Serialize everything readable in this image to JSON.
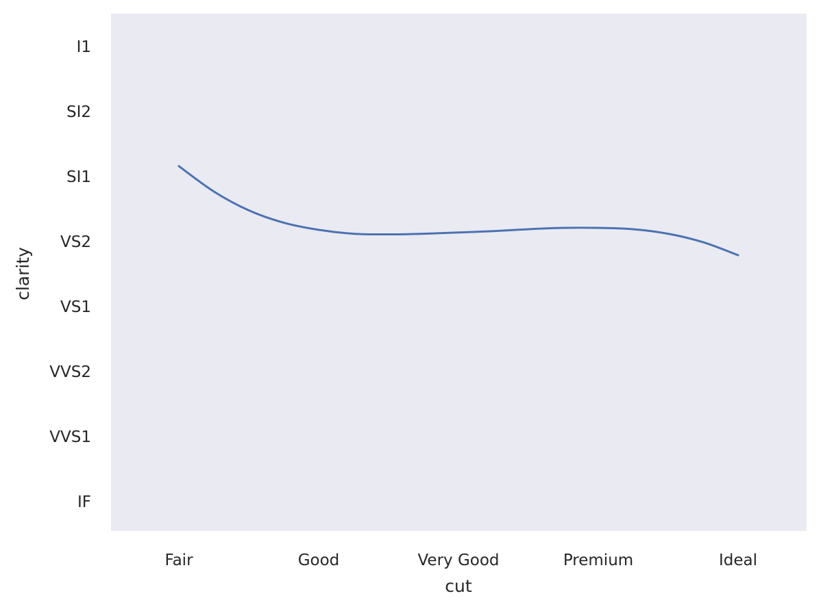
{
  "chart_data": {
    "type": "line",
    "xlabel": "cut",
    "ylabel": "clarity",
    "categories": [
      "Fair",
      "Good",
      "Very Good",
      "Premium",
      "Ideal"
    ],
    "y_categories": [
      "I1",
      "SI2",
      "SI1",
      "VS2",
      "VS1",
      "VVS2",
      "VVS1",
      "IF"
    ],
    "y_axis_inverted": true,
    "grid": false,
    "series": [
      {
        "color": "#4c72b0",
        "points": [
          {
            "x": 0.0,
            "y": 1.84
          },
          {
            "x": 0.25,
            "y": 2.23
          },
          {
            "x": 0.5,
            "y": 2.52
          },
          {
            "x": 0.75,
            "y": 2.71
          },
          {
            "x": 1.0,
            "y": 2.82
          },
          {
            "x": 1.25,
            "y": 2.88
          },
          {
            "x": 1.5,
            "y": 2.89
          },
          {
            "x": 1.75,
            "y": 2.88
          },
          {
            "x": 2.0,
            "y": 2.86
          },
          {
            "x": 2.25,
            "y": 2.84
          },
          {
            "x": 2.5,
            "y": 2.81
          },
          {
            "x": 2.75,
            "y": 2.79
          },
          {
            "x": 3.0,
            "y": 2.79
          },
          {
            "x": 3.25,
            "y": 2.81
          },
          {
            "x": 3.5,
            "y": 2.88
          },
          {
            "x": 3.75,
            "y": 3.01
          },
          {
            "x": 4.0,
            "y": 3.21
          }
        ]
      }
    ],
    "colors": {
      "plot_background": "#eaeaf2",
      "figure_background": "#ffffff",
      "text": "#262626"
    }
  }
}
